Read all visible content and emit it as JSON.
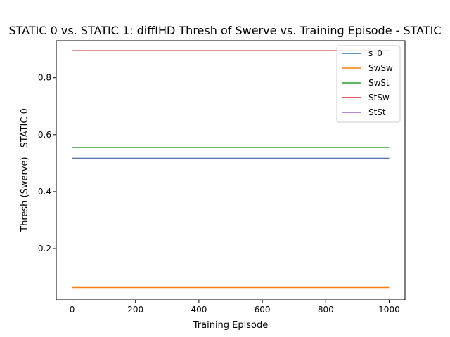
{
  "chart_data": {
    "type": "line",
    "title": "STATIC 0 vs. STATIC 1: diffIHD Thresh of Swerve vs. Training Episode - STATIC",
    "xlabel": "Training Episode",
    "ylabel": "Thresh (Swerve) - STATIC 0",
    "xlim": [
      -50,
      1050
    ],
    "ylim": [
      0.02,
      0.93
    ],
    "xticks": [
      "0",
      "200",
      "400",
      "600",
      "800",
      "1000"
    ],
    "yticks": [
      "0.2",
      "0.4",
      "0.6",
      "0.8"
    ],
    "legend_position": "top-right",
    "grid": false,
    "series": [
      {
        "name": "s_0",
        "color": "#1f77b4",
        "x": [
          0,
          1000
        ],
        "y": [
          0.517,
          0.517
        ]
      },
      {
        "name": "SwSw",
        "color": "#ff7f0e",
        "x": [
          0,
          1000
        ],
        "y": [
          0.063,
          0.063
        ]
      },
      {
        "name": "SwSt",
        "color": "#2ca02c",
        "x": [
          0,
          1000
        ],
        "y": [
          0.555,
          0.555
        ]
      },
      {
        "name": "StSw",
        "color": "#d62728",
        "x": [
          0,
          1000
        ],
        "y": [
          0.895,
          0.895
        ]
      },
      {
        "name": "StSt",
        "color": "#9467bd",
        "x": [
          0,
          1000
        ],
        "y": [
          0.515,
          0.515
        ]
      }
    ]
  }
}
